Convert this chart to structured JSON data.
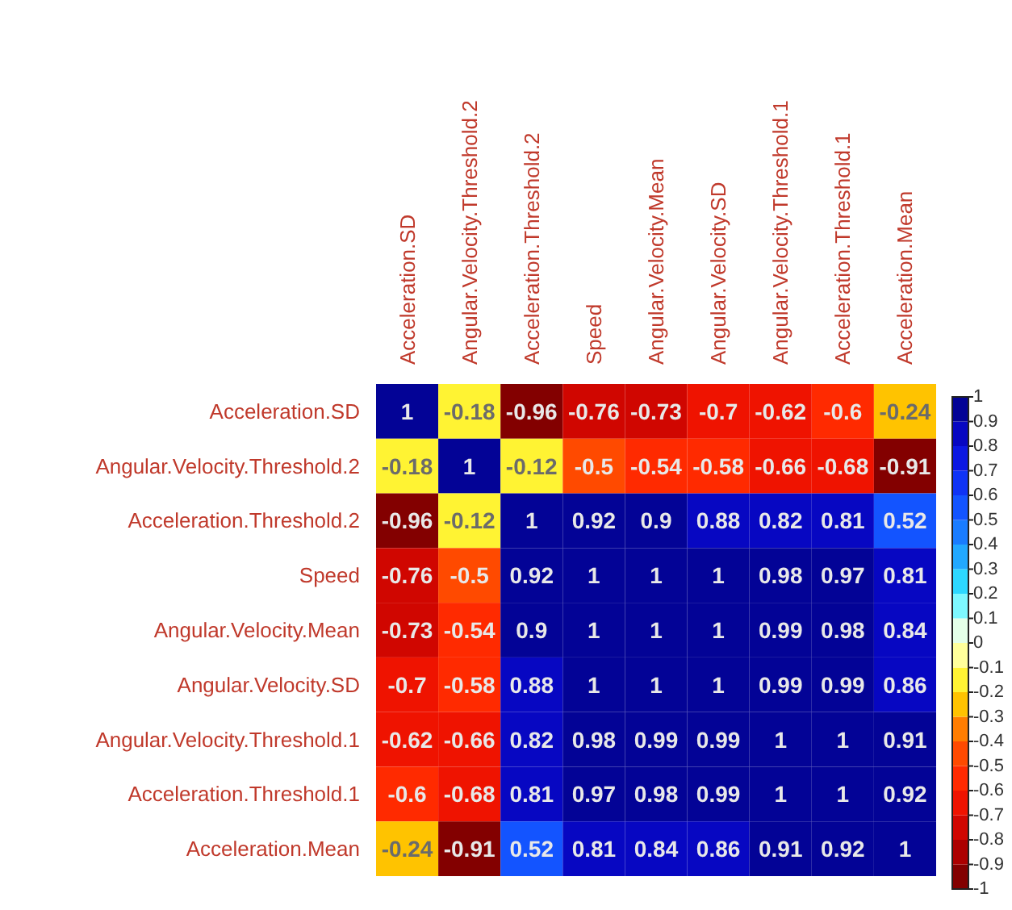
{
  "chart_data": {
    "type": "heatmap",
    "categories": [
      "Acceleration.SD",
      "Angular.Velocity.Threshold.2",
      "Acceleration.Threshold.2",
      "Speed",
      "Angular.Velocity.Mean",
      "Angular.Velocity.SD",
      "Angular.Velocity.Threshold.1",
      "Acceleration.Threshold.1",
      "Acceleration.Mean"
    ],
    "y_categories": [
      "Acceleration.SD",
      "Angular.Velocity.Threshold.2",
      "Acceleration.Threshold.2",
      "Speed",
      "Angular.Velocity.Mean",
      "Angular.Velocity.SD",
      "Angular.Velocity.Threshold.1",
      "Acceleration.Threshold.1",
      "Acceleration.Mean"
    ],
    "cells": [
      [
        1,
        -0.18,
        -0.96,
        -0.76,
        -0.73,
        -0.7,
        -0.62,
        -0.6,
        -0.24
      ],
      [
        -0.18,
        1,
        -0.12,
        -0.5,
        -0.54,
        -0.58,
        -0.66,
        -0.68,
        -0.91
      ],
      [
        -0.96,
        -0.12,
        1,
        0.92,
        0.9,
        0.88,
        0.82,
        0.81,
        0.52
      ],
      [
        -0.76,
        -0.5,
        0.92,
        1,
        1,
        1,
        0.98,
        0.97,
        0.81
      ],
      [
        -0.73,
        -0.54,
        0.9,
        1,
        1,
        1,
        0.99,
        0.98,
        0.84
      ],
      [
        -0.7,
        -0.58,
        0.88,
        1,
        1,
        1,
        0.99,
        0.99,
        0.86
      ],
      [
        -0.62,
        -0.66,
        0.82,
        0.98,
        0.99,
        0.99,
        1,
        1,
        0.91
      ],
      [
        -0.6,
        -0.68,
        0.81,
        0.97,
        0.98,
        0.99,
        1,
        1,
        0.92
      ],
      [
        -0.24,
        -0.91,
        0.52,
        0.81,
        0.84,
        0.86,
        0.91,
        0.92,
        1
      ]
    ],
    "data_labels": true,
    "clim": [
      -1,
      1
    ],
    "cticks": [
      1,
      0.9,
      0.8,
      0.7,
      0.6,
      0.5,
      0.4,
      0.3,
      0.2,
      0.1,
      0,
      -0.1,
      -0.2,
      -0.3,
      -0.4,
      -0.5,
      -0.6,
      -0.7,
      -0.8,
      -0.9,
      -1
    ]
  }
}
